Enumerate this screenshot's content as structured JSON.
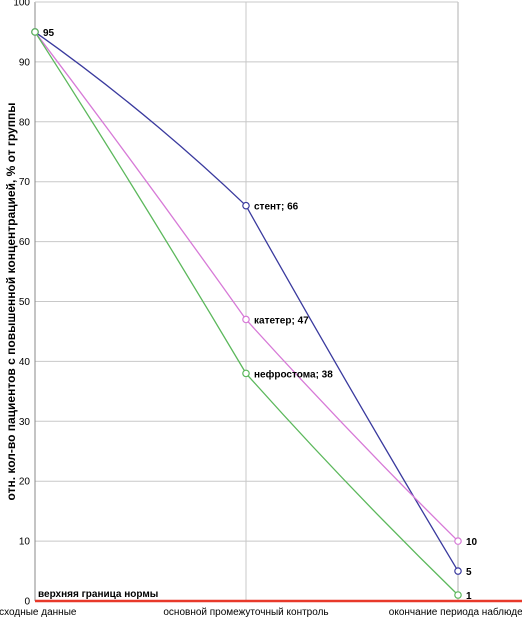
{
  "chart_data": {
    "type": "line",
    "ylabel": "отн. кол-во пациентов с повышенной концентрацией, % от группы",
    "xlabel": "",
    "categories": [
      "исходные данные",
      "основной промежуточный контроль",
      "окончание периода наблюдения"
    ],
    "ylim": [
      0,
      100
    ],
    "yticks": [
      0,
      10,
      20,
      30,
      40,
      50,
      60,
      70,
      80,
      90,
      100
    ],
    "grid": true,
    "series": [
      {
        "name": "стент",
        "values": [
          95,
          66,
          5
        ],
        "color": "#3a3a9e",
        "point_labels": [
          "95",
          "стент; 66",
          "5"
        ]
      },
      {
        "name": "катетер",
        "values": [
          95,
          47,
          10
        ],
        "color": "#d77ad7",
        "point_labels": [
          "",
          "катетер; 47",
          "10"
        ]
      },
      {
        "name": "нефростома",
        "values": [
          95,
          38,
          1
        ],
        "color": "#5cb85c",
        "point_labels": [
          "",
          "нефростома; 38",
          "1"
        ]
      }
    ],
    "reference_line": {
      "label": "верхняя граница нормы",
      "value": 0,
      "color": "#e8392a"
    }
  }
}
